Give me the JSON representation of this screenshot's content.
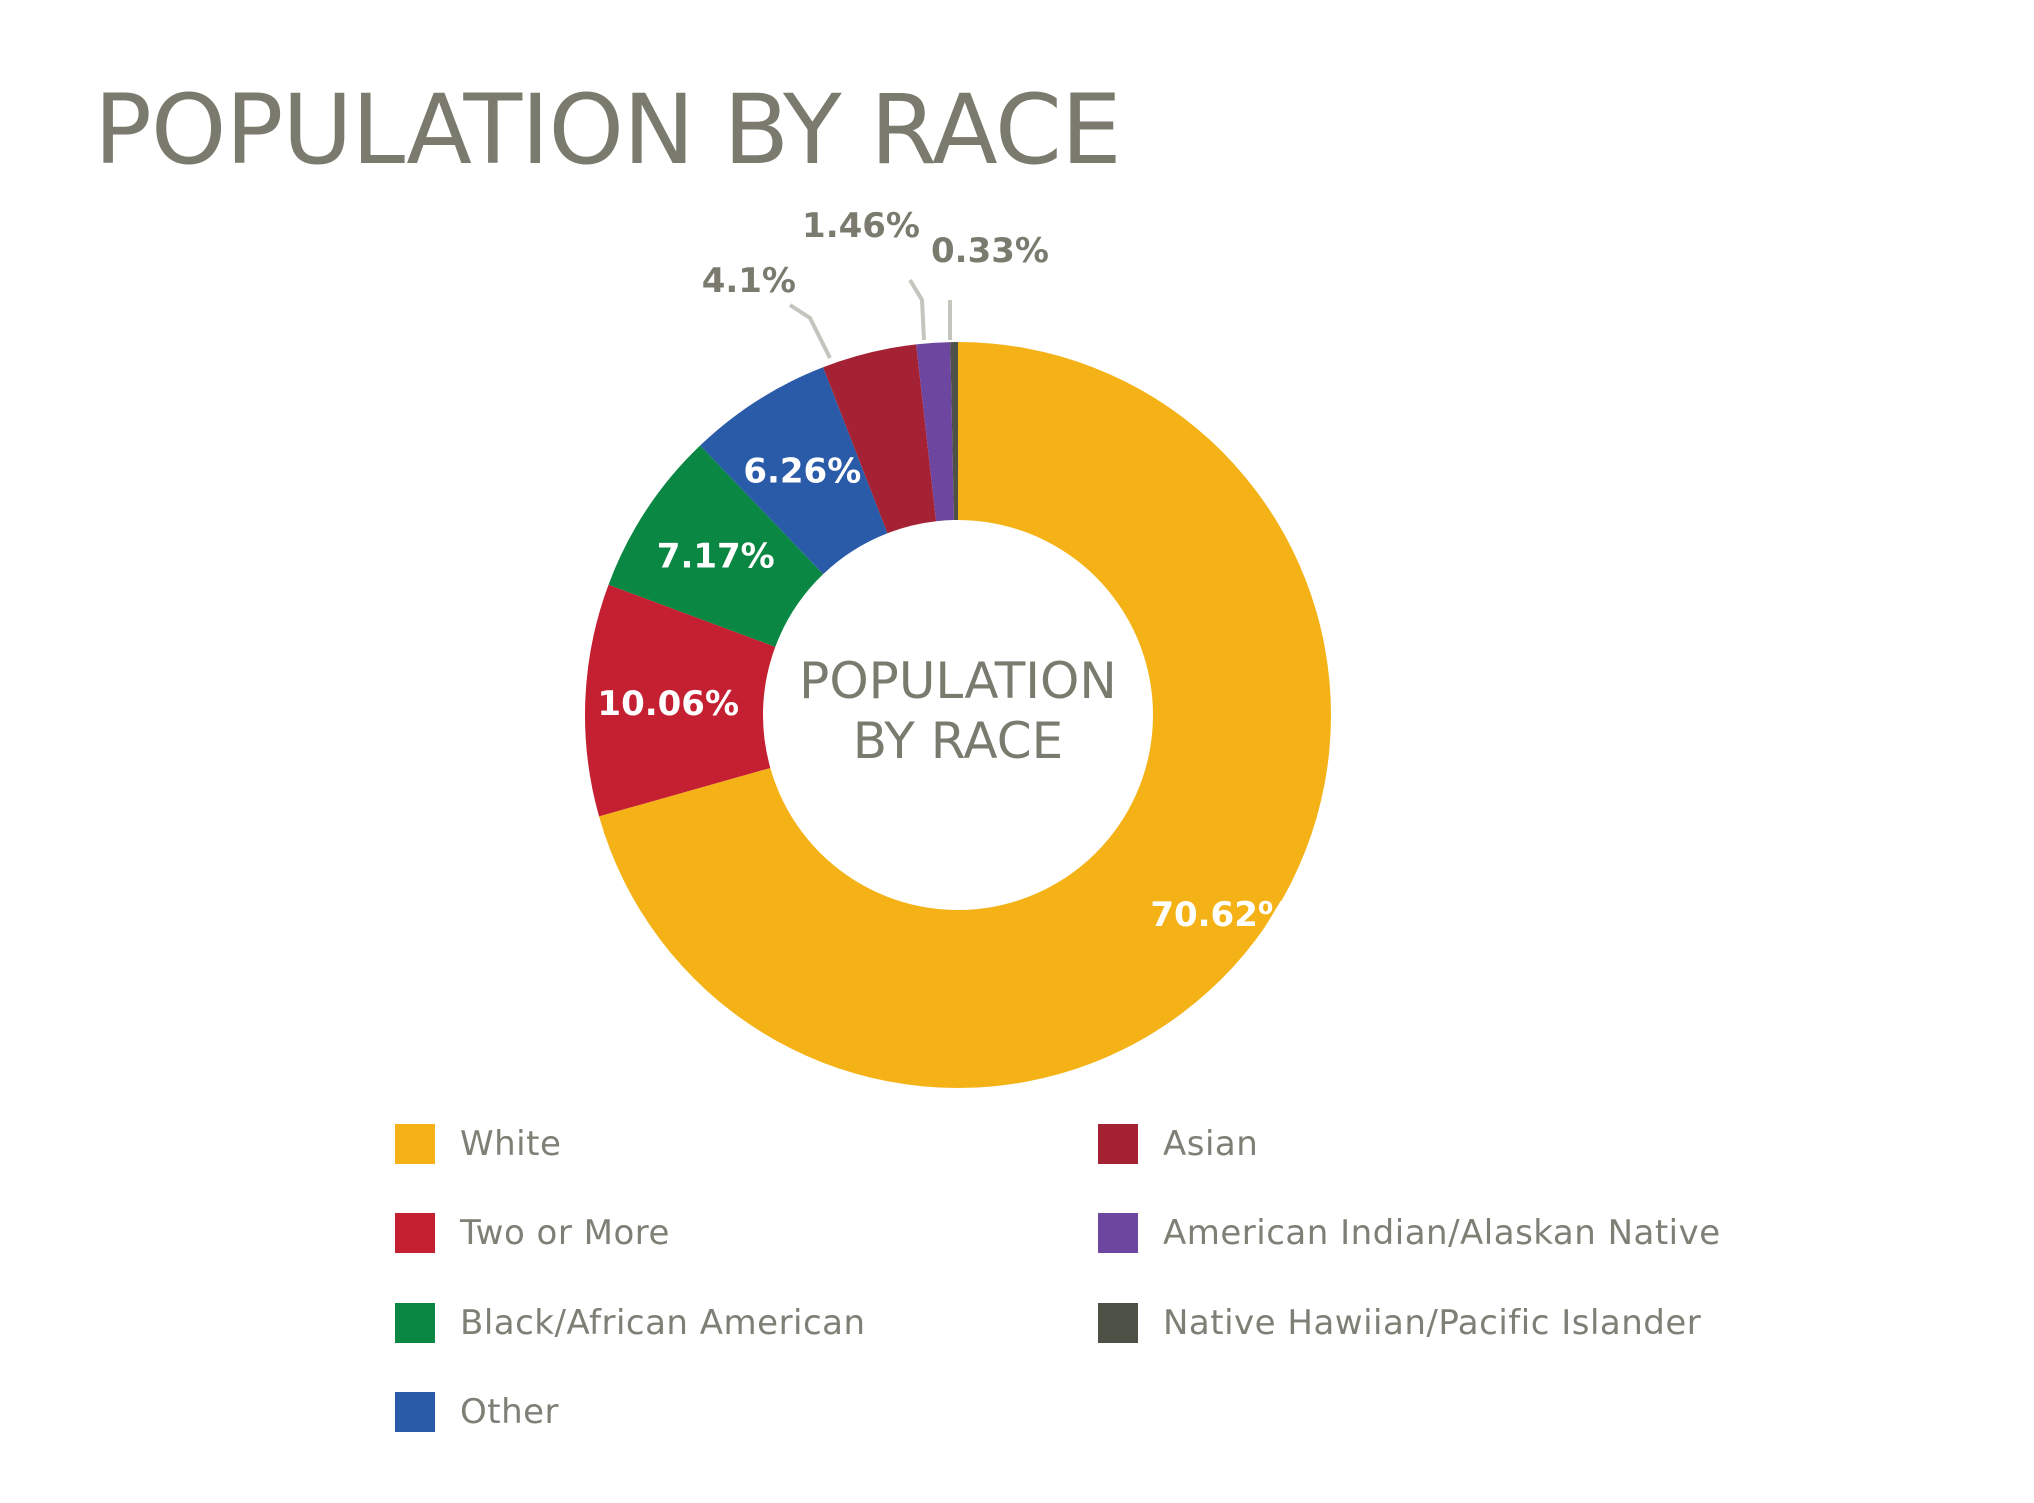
{
  "title": "POPULATION BY RACE",
  "chart_data": {
    "type": "pie",
    "title": "POPULATION BY RACE",
    "center_label": [
      "POPULATION",
      "BY RACE"
    ],
    "legend_position": "bottom",
    "slices": [
      {
        "name": "White",
        "value": 70.62,
        "label": "70.62%",
        "color": "#f5b216"
      },
      {
        "name": "Two or More",
        "value": 10.06,
        "label": "10.06%",
        "color": "#c42032"
      },
      {
        "name": "Black/African American",
        "value": 7.17,
        "label": "7.17%",
        "color": "#098743"
      },
      {
        "name": "Other",
        "value": 6.26,
        "label": "6.26%",
        "color": "#2a5ba8"
      },
      {
        "name": "Asian",
        "value": 4.1,
        "label": "4.1%",
        "color": "#a52235"
      },
      {
        "name": "American Indian/Alaskan Native",
        "value": 1.46,
        "label": "1.46%",
        "color": "#6d46a0"
      },
      {
        "name": "Native Hawiian/Pacific Islander",
        "value": 0.33,
        "label": "0.33%",
        "color": "#4e5145"
      }
    ],
    "inside_label_color": "#ffffff",
    "outside_label_color": "#7a7b6e",
    "leader_line_color": "#c4c5bd"
  }
}
